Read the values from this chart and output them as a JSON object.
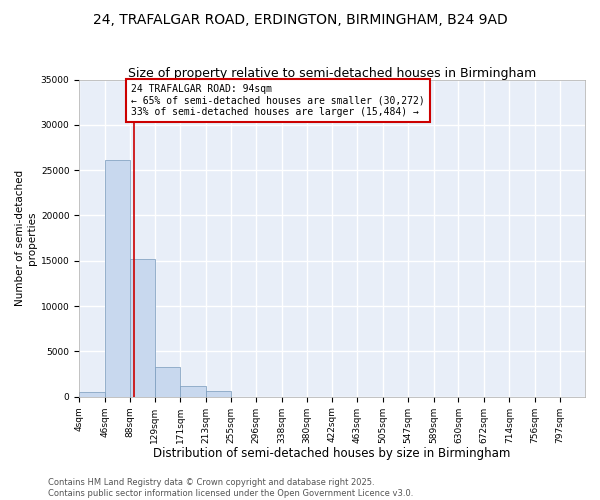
{
  "title": "24, TRAFALGAR ROAD, ERDINGTON, BIRMINGHAM, B24 9AD",
  "subtitle": "Size of property relative to semi-detached houses in Birmingham",
  "xlabel": "Distribution of semi-detached houses by size in Birmingham",
  "ylabel": "Number of semi-detached\nproperties",
  "bin_edges": [
    4,
    46,
    88,
    129,
    171,
    213,
    255,
    296,
    338,
    380,
    422,
    463,
    505,
    547,
    589,
    630,
    672,
    714,
    756,
    797,
    839
  ],
  "bar_heights": [
    500,
    26100,
    15200,
    3300,
    1200,
    600,
    0,
    0,
    0,
    0,
    0,
    0,
    0,
    0,
    0,
    0,
    0,
    0,
    0,
    0
  ],
  "bar_color": "#c8d8ee",
  "bar_edge_color": "#7799bb",
  "property_size": 94,
  "red_line_color": "#cc0000",
  "annotation_text": "24 TRAFALGAR ROAD: 94sqm\n← 65% of semi-detached houses are smaller (30,272)\n33% of semi-detached houses are larger (15,484) →",
  "annotation_box_color": "#cc0000",
  "ylim": [
    0,
    35000
  ],
  "yticks": [
    0,
    5000,
    10000,
    15000,
    20000,
    25000,
    30000,
    35000
  ],
  "background_color": "#e8eef8",
  "grid_color": "#ffffff",
  "footer_text": "Contains HM Land Registry data © Crown copyright and database right 2025.\nContains public sector information licensed under the Open Government Licence v3.0.",
  "title_fontsize": 10,
  "subtitle_fontsize": 9,
  "xlabel_fontsize": 8.5,
  "ylabel_fontsize": 7.5,
  "tick_fontsize": 6.5,
  "annotation_fontsize": 7,
  "footer_fontsize": 6
}
